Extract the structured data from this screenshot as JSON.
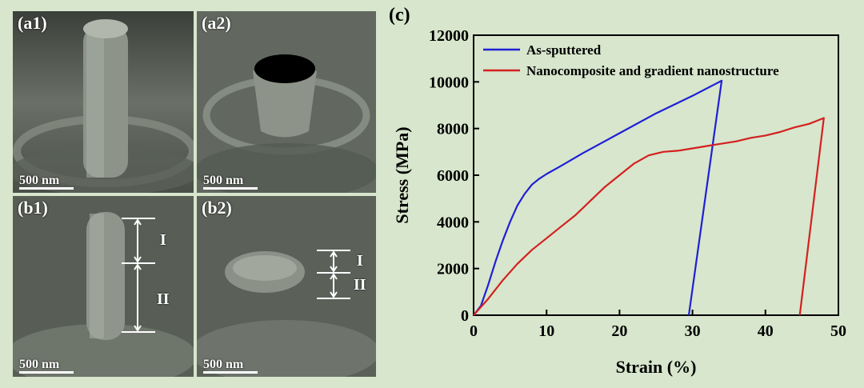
{
  "panels": [
    {
      "label": "(a1)",
      "scale": "500 nm"
    },
    {
      "label": "(a2)",
      "scale": "500 nm"
    },
    {
      "label": "(b1)",
      "scale": "500 nm",
      "regions": [
        "I",
        "II"
      ]
    },
    {
      "label": "(b2)",
      "scale": "500 nm",
      "regions": [
        "I",
        "II"
      ]
    }
  ],
  "chart_data": {
    "type": "line",
    "panel_label": "(c)",
    "xlabel": "Strain (%)",
    "ylabel": "Stress (MPa)",
    "xlim": [
      0,
      50
    ],
    "ylim": [
      0,
      12000
    ],
    "xticks": [
      0,
      10,
      20,
      30,
      40,
      50
    ],
    "yticks": [
      0,
      2000,
      4000,
      6000,
      8000,
      10000,
      12000
    ],
    "legend_position": "top-left",
    "series": [
      {
        "name": "As-sputtered",
        "color": "#1f1fd6",
        "points": [
          [
            0,
            0
          ],
          [
            1,
            400
          ],
          [
            2,
            1300
          ],
          [
            3,
            2300
          ],
          [
            4,
            3200
          ],
          [
            5,
            4000
          ],
          [
            6,
            4700
          ],
          [
            7,
            5200
          ],
          [
            8,
            5600
          ],
          [
            9,
            5850
          ],
          [
            10,
            6050
          ],
          [
            12,
            6400
          ],
          [
            15,
            6950
          ],
          [
            20,
            7800
          ],
          [
            25,
            8650
          ],
          [
            30,
            9400
          ],
          [
            34,
            10050
          ],
          [
            29.5,
            0
          ]
        ]
      },
      {
        "name": "Nanocomposite and gradient nanostructure",
        "color": "#d42020",
        "points": [
          [
            0,
            0
          ],
          [
            2,
            700
          ],
          [
            4,
            1500
          ],
          [
            6,
            2200
          ],
          [
            8,
            2800
          ],
          [
            10,
            3300
          ],
          [
            12,
            3800
          ],
          [
            14,
            4300
          ],
          [
            16,
            4900
          ],
          [
            18,
            5500
          ],
          [
            20,
            6000
          ],
          [
            22,
            6500
          ],
          [
            24,
            6850
          ],
          [
            26,
            7000
          ],
          [
            28,
            7050
          ],
          [
            30,
            7150
          ],
          [
            32,
            7250
          ],
          [
            34,
            7350
          ],
          [
            36,
            7450
          ],
          [
            38,
            7600
          ],
          [
            40,
            7700
          ],
          [
            42,
            7850
          ],
          [
            44,
            8050
          ],
          [
            46,
            8200
          ],
          [
            48,
            8450
          ],
          [
            44.7,
            0
          ]
        ]
      }
    ]
  }
}
